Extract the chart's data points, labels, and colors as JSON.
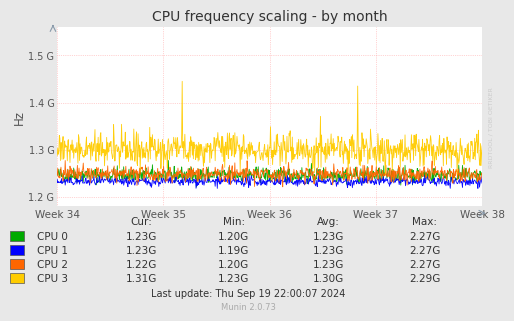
{
  "title": "CPU frequency scaling - by month",
  "ylabel": "Hz",
  "background_color": "#e8e8e8",
  "plot_bg_color": "#ffffff",
  "grid_color": "#ffaaaa",
  "yticks": [
    1200000000,
    1300000000,
    1400000000,
    1500000000
  ],
  "ytick_labels": [
    "1.2 G",
    "1.3 G",
    "1.4 G",
    "1.5 G"
  ],
  "ymin": 1180000000,
  "ymax": 1560000000,
  "xtick_labels": [
    "Week 34",
    "Week 35",
    "Week 36",
    "Week 37",
    "Week 38"
  ],
  "legend_labels": [
    "CPU 0",
    "CPU 1",
    "CPU 2",
    "CPU 3"
  ],
  "legend_colors": [
    "#00aa00",
    "#0000ff",
    "#ff6600",
    "#ffcc00"
  ],
  "table_headers": [
    "Cur:",
    "Min:",
    "Avg:",
    "Max:"
  ],
  "table_data": [
    [
      "1.23G",
      "1.20G",
      "1.23G",
      "2.27G"
    ],
    [
      "1.23G",
      "1.19G",
      "1.23G",
      "2.27G"
    ],
    [
      "1.22G",
      "1.20G",
      "1.23G",
      "2.27G"
    ],
    [
      "1.31G",
      "1.23G",
      "1.30G",
      "2.29G"
    ]
  ],
  "last_update": "Last update: Thu Sep 19 22:00:07 2024",
  "munin_version": "Munin 2.0.73",
  "watermark": "RRDTOOL / TOBI OETIKER",
  "n_points": 800,
  "cpu0_base": 1246000000,
  "cpu1_base": 1232000000,
  "cpu2_base": 1248000000,
  "cpu3_base": 1300000000,
  "cpu0_noise": 8000000,
  "cpu1_noise": 5000000,
  "cpu2_noise": 9000000,
  "cpu3_noise": 18000000,
  "spike_week35_idx": 235,
  "spike_week35_val": 1445000000,
  "spike_week37_idx": 565,
  "spike_week37_val": 1435000000,
  "dark_spike_week37_idx": 563,
  "dark_spike_week37_val": 1263000000
}
